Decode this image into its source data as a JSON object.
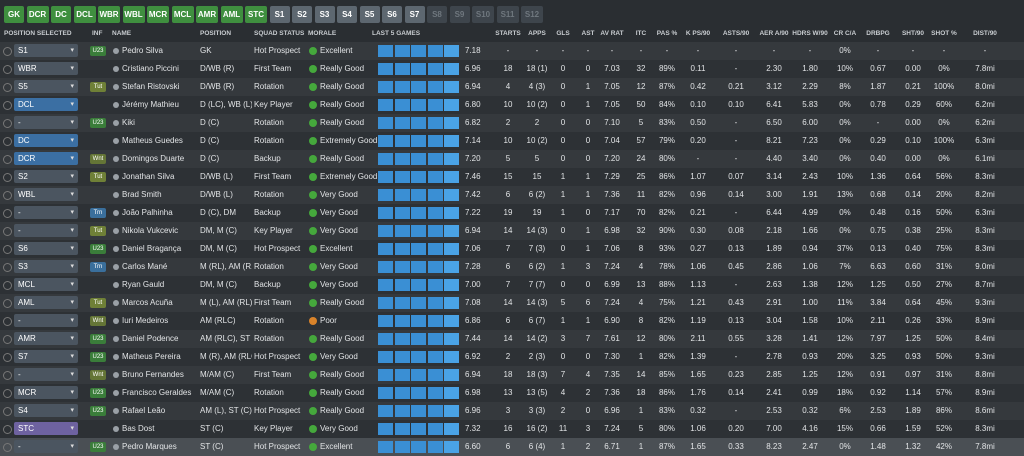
{
  "tabs": [
    "GK",
    "DCR",
    "DC",
    "DCL",
    "WBR",
    "WBL",
    "MCR",
    "MCL",
    "AMR",
    "AML",
    "STC",
    "S1",
    "S2",
    "S3",
    "S4",
    "S5",
    "S6",
    "S7",
    "S8",
    "S9",
    "S10",
    "S11",
    "S12"
  ],
  "headers": [
    "POSITION SELECTED",
    "INF",
    "NAME",
    "POSITION",
    "SQUAD STATUS",
    "MORALE",
    "LAST 5 GAMES",
    "STARTS",
    "APPS",
    "GLS",
    "AST",
    "AV RAT",
    "ITC",
    "PAS %",
    "K PS/90",
    "ASTS/90",
    "AER A/90",
    "HDRS W/90",
    "CR C/A",
    "DRBPG",
    "SHT/90",
    "SHOT %",
    "DIST/90"
  ],
  "rows": [
    [
      "S1",
      "U23",
      "Pedro Silva",
      "GK",
      "Hot Prospect",
      "Excellent",
      "7.18",
      "-",
      "-",
      "-",
      "-",
      "-",
      "-",
      "-",
      "-",
      "-",
      "-",
      "-",
      "0%",
      "-",
      "-",
      "-",
      "-"
    ],
    [
      "WBR",
      null,
      "Cristiano Piccini",
      "D/WB (R)",
      "First Team",
      "Really Good",
      "6.96",
      "18",
      "18 (1)",
      "0",
      "0",
      "7.03",
      "32",
      "89%",
      "0.11",
      "-",
      "2.30",
      "1.80",
      "10%",
      "0.67",
      "0.00",
      "0%",
      "7.8mi"
    ],
    [
      "S5",
      "Tut",
      "Stefan Ristovski",
      "D/WB (R)",
      "Rotation",
      "Really Good",
      "6.94",
      "4",
      "4 (3)",
      "0",
      "1",
      "7.05",
      "12",
      "87%",
      "0.42",
      "0.21",
      "3.12",
      "2.29",
      "8%",
      "1.87",
      "0.21",
      "100%",
      "8.0mi"
    ],
    [
      "DCL",
      null,
      "Jérémy Mathieu",
      "D (LC), WB (L)",
      "Key Player",
      "Really Good",
      "6.80",
      "10",
      "10 (2)",
      "0",
      "1",
      "7.05",
      "50",
      "84%",
      "0.10",
      "0.10",
      "6.41",
      "5.83",
      "0%",
      "0.78",
      "0.29",
      "60%",
      "6.2mi"
    ],
    [
      "-",
      "U23",
      "Kiki",
      "D (C)",
      "Rotation",
      "Really Good",
      "6.82",
      "2",
      "2",
      "0",
      "0",
      "7.10",
      "5",
      "83%",
      "0.50",
      "-",
      "6.50",
      "6.00",
      "0%",
      "-",
      "0.00",
      "0%",
      "6.2mi"
    ],
    [
      "DC",
      null,
      "Matheus Guedes",
      "D (C)",
      "Rotation",
      "Extremely Good",
      "7.14",
      "10",
      "10 (2)",
      "0",
      "0",
      "7.04",
      "57",
      "79%",
      "0.20",
      "-",
      "8.21",
      "7.23",
      "0%",
      "0.29",
      "0.10",
      "100%",
      "6.3mi"
    ],
    [
      "DCR",
      "Wnt",
      "Domingos Duarte",
      "D (C)",
      "Backup",
      "Really Good",
      "7.20",
      "5",
      "5",
      "0",
      "0",
      "7.20",
      "24",
      "80%",
      "-",
      "-",
      "4.40",
      "3.40",
      "0%",
      "0.40",
      "0.00",
      "0%",
      "6.1mi"
    ],
    [
      "S2",
      "Tut",
      "Jonathan Silva",
      "D/WB (L)",
      "First Team",
      "Extremely Good",
      "7.46",
      "15",
      "15",
      "1",
      "1",
      "7.29",
      "25",
      "86%",
      "1.07",
      "0.07",
      "3.14",
      "2.43",
      "10%",
      "1.36",
      "0.64",
      "56%",
      "8.3mi"
    ],
    [
      "WBL",
      null,
      "Brad Smith",
      "D/WB (L)",
      "Rotation",
      "Very Good",
      "7.42",
      "6",
      "6 (2)",
      "1",
      "1",
      "7.36",
      "11",
      "82%",
      "0.96",
      "0.14",
      "3.00",
      "1.91",
      "13%",
      "0.68",
      "0.14",
      "20%",
      "8.2mi"
    ],
    [
      "-",
      "Trn",
      "João Palhinha",
      "D (C), DM",
      "Backup",
      "Very Good",
      "7.22",
      "19",
      "19",
      "1",
      "0",
      "7.17",
      "70",
      "82%",
      "0.21",
      "-",
      "6.44",
      "4.99",
      "0%",
      "0.48",
      "0.16",
      "50%",
      "6.3mi"
    ],
    [
      "-",
      "Tut",
      "Nikola Vukcevic",
      "DM, M (C)",
      "Key Player",
      "Very Good",
      "6.94",
      "14",
      "14 (3)",
      "0",
      "1",
      "6.98",
      "32",
      "90%",
      "0.30",
      "0.08",
      "2.18",
      "1.66",
      "0%",
      "0.75",
      "0.38",
      "25%",
      "8.3mi"
    ],
    [
      "S6",
      "U23",
      "Daniel Bragança",
      "DM, M (C)",
      "Hot Prospect",
      "Excellent",
      "7.06",
      "7",
      "7 (3)",
      "0",
      "1",
      "7.06",
      "8",
      "93%",
      "0.27",
      "0.13",
      "1.89",
      "0.94",
      "37%",
      "0.13",
      "0.40",
      "75%",
      "8.3mi"
    ],
    [
      "S3",
      "Trn",
      "Carlos Mané",
      "M (RL), AM (R...",
      "Rotation",
      "Very Good",
      "7.28",
      "6",
      "6 (2)",
      "1",
      "3",
      "7.24",
      "4",
      "78%",
      "1.06",
      "0.45",
      "2.86",
      "1.06",
      "7%",
      "6.63",
      "0.60",
      "31%",
      "9.0mi"
    ],
    [
      "MCL",
      null,
      "Ryan Gauld",
      "DM, M (C)",
      "Backup",
      "Very Good",
      "7.00",
      "7",
      "7 (7)",
      "0",
      "0",
      "6.99",
      "13",
      "88%",
      "1.13",
      "-",
      "2.63",
      "1.38",
      "12%",
      "1.25",
      "0.50",
      "27%",
      "8.7mi"
    ],
    [
      "AML",
      "Tut",
      "Marcos Acuña",
      "M (L), AM (RL)",
      "First Team",
      "Really Good",
      "7.08",
      "14",
      "14 (3)",
      "5",
      "6",
      "7.24",
      "4",
      "75%",
      "1.21",
      "0.43",
      "2.91",
      "1.00",
      "11%",
      "3.84",
      "0.64",
      "45%",
      "9.3mi"
    ],
    [
      "-",
      "Wnt",
      "Iuri Medeiros",
      "AM (RLC)",
      "Rotation",
      "Poor",
      "6.86",
      "6",
      "6 (7)",
      "1",
      "1",
      "6.90",
      "8",
      "82%",
      "1.19",
      "0.13",
      "3.04",
      "1.58",
      "10%",
      "2.11",
      "0.26",
      "33%",
      "8.9mi"
    ],
    [
      "AMR",
      "U23",
      "Daniel Podence",
      "AM (RLC), ST (C)",
      "Rotation",
      "Really Good",
      "7.44",
      "14",
      "14 (2)",
      "3",
      "7",
      "7.61",
      "12",
      "80%",
      "2.11",
      "0.55",
      "3.28",
      "1.41",
      "12%",
      "7.97",
      "1.25",
      "50%",
      "8.4mi"
    ],
    [
      "S7",
      "U23",
      "Matheus Pereira",
      "M (R), AM (RLC)",
      "Hot Prospect",
      "Very Good",
      "6.92",
      "2",
      "2 (3)",
      "0",
      "0",
      "7.30",
      "1",
      "82%",
      "1.39",
      "-",
      "2.78",
      "0.93",
      "20%",
      "3.25",
      "0.93",
      "50%",
      "9.3mi"
    ],
    [
      "-",
      "Wnt",
      "Bruno Fernandes",
      "M/AM (C)",
      "First Team",
      "Really Good",
      "6.94",
      "18",
      "18 (3)",
      "7",
      "4",
      "7.35",
      "14",
      "85%",
      "1.65",
      "0.23",
      "2.85",
      "1.25",
      "12%",
      "0.91",
      "0.97",
      "31%",
      "8.8mi"
    ],
    [
      "MCR",
      "U23",
      "Francisco Geraldes",
      "M/AM (C)",
      "Rotation",
      "Really Good",
      "6.98",
      "13",
      "13 (5)",
      "4",
      "2",
      "7.36",
      "18",
      "86%",
      "1.76",
      "0.14",
      "2.41",
      "0.99",
      "18%",
      "0.92",
      "1.14",
      "57%",
      "8.9mi"
    ],
    [
      "S4",
      "U23",
      "Rafael Leão",
      "AM (L), ST (C)",
      "Hot Prospect",
      "Really Good",
      "6.96",
      "3",
      "3 (3)",
      "2",
      "0",
      "6.96",
      "1",
      "83%",
      "0.32",
      "-",
      "2.53",
      "0.32",
      "6%",
      "2.53",
      "1.89",
      "86%",
      "8.6mi"
    ],
    [
      "STC",
      null,
      "Bas Dost",
      "ST (C)",
      "Key Player",
      "Very Good",
      "7.32",
      "16",
      "16 (2)",
      "11",
      "3",
      "7.24",
      "5",
      "80%",
      "1.06",
      "0.20",
      "7.00",
      "4.16",
      "15%",
      "0.66",
      "1.59",
      "52%",
      "8.3mi"
    ],
    [
      "-",
      "U23",
      "Pedro Marques",
      "ST (C)",
      "Hot Prospect",
      "Excellent",
      "6.60",
      "6",
      "6 (4)",
      "1",
      "2",
      "6.71",
      "1",
      "87%",
      "1.65",
      "0.33",
      "8.23",
      "2.47",
      "0%",
      "1.48",
      "1.32",
      "42%",
      "7.8mi"
    ]
  ]
}
